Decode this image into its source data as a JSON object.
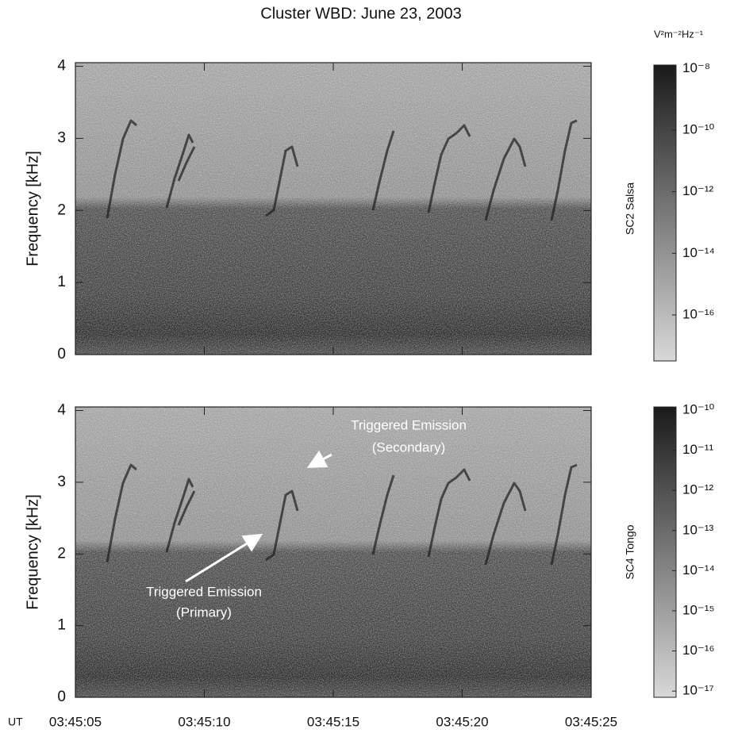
{
  "chart_data": [
    {
      "type": "spectrogram",
      "title": "Cluster WBD:  June 23, 2003",
      "ylabel": "Frequency [kHz]",
      "ylim": [
        0,
        4.05
      ],
      "yticks": [
        0,
        1,
        2,
        3,
        4
      ],
      "side_label": "SC2 Salsa",
      "colorbar_label": "V²m⁻²Hz⁻¹",
      "colorbar_log": true,
      "clim": [
        3.2e-18,
        1.3e-08
      ],
      "cticks": [
        {
          "value": 1e-08,
          "label": "10⁻⁸"
        },
        {
          "value": 1e-10,
          "label": "10⁻¹⁰"
        },
        {
          "value": 1e-12,
          "label": "10⁻¹²"
        },
        {
          "value": 1e-14,
          "label": "10⁻¹⁴"
        },
        {
          "value": 1e-16,
          "label": "10⁻¹⁶"
        }
      ]
    },
    {
      "type": "spectrogram",
      "ylabel": "Frequency [kHz]",
      "xlabel": "UT",
      "ylim": [
        0,
        4.05
      ],
      "yticks": [
        0,
        1,
        2,
        3,
        4
      ],
      "xticks": [
        "03:45:05",
        "03:45:10",
        "03:45:15",
        "03:45:20",
        "03:45:25"
      ],
      "side_label": "SC4 Tongo",
      "colorbar_log": true,
      "clim": [
        7e-18,
        1.2e-10
      ],
      "cticks": [
        {
          "value": 1e-10,
          "label": "10⁻¹⁰"
        },
        {
          "value": 1e-11,
          "label": "10⁻¹¹"
        },
        {
          "value": 1e-12,
          "label": "10⁻¹²"
        },
        {
          "value": 1e-13,
          "label": "10⁻¹³"
        },
        {
          "value": 1e-14,
          "label": "10⁻¹⁴"
        },
        {
          "value": 1e-15,
          "label": "10⁻¹⁵"
        },
        {
          "value": 1e-16,
          "label": "10⁻¹⁶"
        },
        {
          "value": 1e-17,
          "label": "10⁻¹⁷"
        }
      ],
      "annotations": [
        "Triggered Emission",
        "(Secondary)",
        "Triggered Emission",
        "(Primary)"
      ]
    }
  ]
}
